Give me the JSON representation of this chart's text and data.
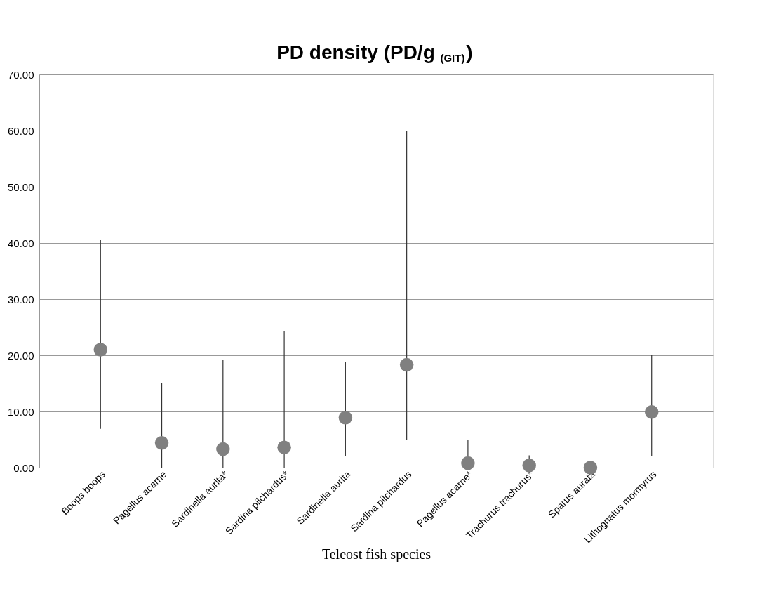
{
  "chart_data": {
    "type": "scatter",
    "title": "PD density (PD/g $_{(GIT)}$)",
    "xlabel": "Teleost fish species",
    "categories": [
      "Boops boops",
      "Pagellus acarne",
      "Sardinella aurita*",
      "Sardina pilchardus*",
      "Sardinella aurita",
      "Sardina pilchardus",
      "Pagellus acarne*",
      "Trachurus trachurus*",
      "Sparus aurata",
      "Lithognatus mormyrus"
    ],
    "series": [
      {
        "color": "#808080",
        "values": [
          21.0,
          4.4,
          3.3,
          3.6,
          8.9,
          18.3,
          0.8,
          0.4,
          0.0,
          9.9
        ],
        "errors": [
          [
            6.9,
            40.5
          ],
          [
            0,
            15.0
          ],
          [
            0,
            19.2
          ],
          [
            0,
            24.3
          ],
          [
            2.1,
            18.8
          ],
          [
            5.0,
            60.0
          ],
          [
            0,
            5.0
          ],
          [
            0.4,
            2.2
          ],
          null,
          [
            2.1,
            20.1
          ]
        ]
      }
    ],
    "ylim": [
      0,
      70
    ],
    "yticks": [
      {
        "value": 0,
        "label": "0.00"
      },
      {
        "value": 10,
        "label": "10.00"
      },
      {
        "value": 20,
        "label": "20.00"
      },
      {
        "value": 30,
        "label": "30.00"
      },
      {
        "value": 40,
        "label": "40.00"
      },
      {
        "value": 50,
        "label": "50.00"
      },
      {
        "value": 60,
        "label": "60.00"
      },
      {
        "value": 70,
        "label": "70.00"
      }
    ],
    "grid": "y",
    "marker": "circle"
  }
}
